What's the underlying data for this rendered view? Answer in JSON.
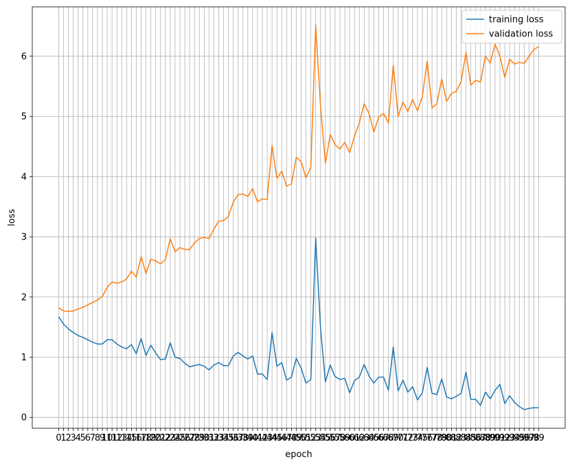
{
  "chart_data": {
    "type": "line",
    "xlabel": "epoch",
    "ylabel": "loss",
    "x": [
      0,
      1,
      2,
      3,
      4,
      5,
      6,
      7,
      8,
      9,
      10,
      11,
      12,
      13,
      14,
      15,
      16,
      17,
      18,
      19,
      20,
      21,
      22,
      23,
      24,
      25,
      26,
      27,
      28,
      29,
      30,
      31,
      32,
      33,
      34,
      35,
      36,
      37,
      38,
      39,
      40,
      41,
      42,
      43,
      44,
      45,
      46,
      47,
      48,
      49,
      50,
      51,
      52,
      53,
      54,
      55,
      56,
      57,
      58,
      59,
      60,
      61,
      62,
      63,
      64,
      65,
      66,
      67,
      68,
      69,
      70,
      71,
      72,
      73,
      74,
      75,
      76,
      77,
      78,
      79,
      80,
      81,
      82,
      83,
      84,
      85,
      86,
      87,
      88,
      89,
      90,
      91,
      92,
      93,
      94,
      95,
      96,
      97,
      98,
      99
    ],
    "x_tick_labels": [
      "0",
      "1",
      "2",
      "3",
      "4",
      "5",
      "6",
      "7",
      "8",
      "9",
      "10",
      "11",
      "12",
      "13",
      "14",
      "15",
      "16",
      "17",
      "18",
      "19",
      "20",
      "21",
      "22",
      "23",
      "24",
      "25",
      "26",
      "27",
      "28",
      "29",
      "30",
      "31",
      "32",
      "33",
      "34",
      "35",
      "36",
      "37",
      "38",
      "39",
      "40",
      "41",
      "42",
      "43",
      "44",
      "45",
      "46",
      "47",
      "48",
      "49",
      "50",
      "51",
      "52",
      "53",
      "54",
      "55",
      "56",
      "57",
      "58",
      "59",
      "60",
      "61",
      "62",
      "63",
      "64",
      "65",
      "66",
      "67",
      "68",
      "69",
      "70",
      "71",
      "72",
      "73",
      "74",
      "75",
      "76",
      "77",
      "78",
      "79",
      "80",
      "81",
      "82",
      "83",
      "84",
      "85",
      "86",
      "87",
      "88",
      "89",
      "90",
      "91",
      "92",
      "93",
      "94",
      "95",
      "96",
      "97",
      "98",
      "99"
    ],
    "xlim": [
      -5.45,
      104.45
    ],
    "ylim": [
      -0.18,
      6.82
    ],
    "y_ticks": [
      0,
      1,
      2,
      3,
      4,
      5,
      6
    ],
    "grid": true,
    "legend_position": "upper right",
    "series": [
      {
        "name": "training loss",
        "color": "#1f77b4",
        "values": [
          1.67,
          1.55,
          1.47,
          1.41,
          1.36,
          1.33,
          1.29,
          1.25,
          1.22,
          1.22,
          1.29,
          1.29,
          1.22,
          1.17,
          1.14,
          1.21,
          1.06,
          1.31,
          1.03,
          1.2,
          1.07,
          0.96,
          0.97,
          1.24,
          1.0,
          0.98,
          0.9,
          0.84,
          0.86,
          0.88,
          0.85,
          0.79,
          0.87,
          0.91,
          0.86,
          0.86,
          1.02,
          1.08,
          1.02,
          0.97,
          1.02,
          0.72,
          0.72,
          0.63,
          1.41,
          0.85,
          0.91,
          0.62,
          0.67,
          0.98,
          0.82,
          0.57,
          0.63,
          2.98,
          1.48,
          0.59,
          0.87,
          0.68,
          0.63,
          0.65,
          0.41,
          0.61,
          0.67,
          0.88,
          0.69,
          0.57,
          0.67,
          0.67,
          0.45,
          1.17,
          0.44,
          0.62,
          0.42,
          0.51,
          0.29,
          0.41,
          0.83,
          0.4,
          0.38,
          0.64,
          0.34,
          0.31,
          0.35,
          0.4,
          0.75,
          0.3,
          0.3,
          0.2,
          0.42,
          0.31,
          0.45,
          0.55,
          0.23,
          0.36,
          0.25,
          0.18,
          0.13,
          0.15,
          0.16,
          0.16
        ]
      },
      {
        "name": "validation loss",
        "color": "#ff7f0e",
        "values": [
          1.82,
          1.77,
          1.76,
          1.77,
          1.8,
          1.83,
          1.87,
          1.91,
          1.95,
          2.01,
          2.16,
          2.25,
          2.23,
          2.25,
          2.3,
          2.43,
          2.33,
          2.67,
          2.39,
          2.63,
          2.6,
          2.55,
          2.62,
          2.97,
          2.75,
          2.82,
          2.79,
          2.79,
          2.9,
          2.97,
          2.99,
          2.97,
          3.13,
          3.26,
          3.27,
          3.34,
          3.58,
          3.7,
          3.71,
          3.67,
          3.8,
          3.58,
          3.63,
          3.62,
          4.52,
          3.97,
          4.09,
          3.84,
          3.88,
          4.32,
          4.25,
          3.98,
          4.15,
          6.52,
          5.17,
          4.22,
          4.7,
          4.53,
          4.46,
          4.57,
          4.4,
          4.67,
          4.89,
          5.21,
          5.05,
          4.74,
          4.99,
          5.05,
          4.89,
          5.85,
          5.0,
          5.24,
          5.08,
          5.28,
          5.09,
          5.33,
          5.92,
          5.14,
          5.21,
          5.62,
          5.25,
          5.38,
          5.42,
          5.58,
          6.06,
          5.52,
          5.6,
          5.57,
          6.0,
          5.89,
          6.2,
          6.0,
          5.65,
          5.95,
          5.87,
          5.9,
          5.88,
          6.0,
          6.11,
          6.16
        ]
      }
    ]
  }
}
